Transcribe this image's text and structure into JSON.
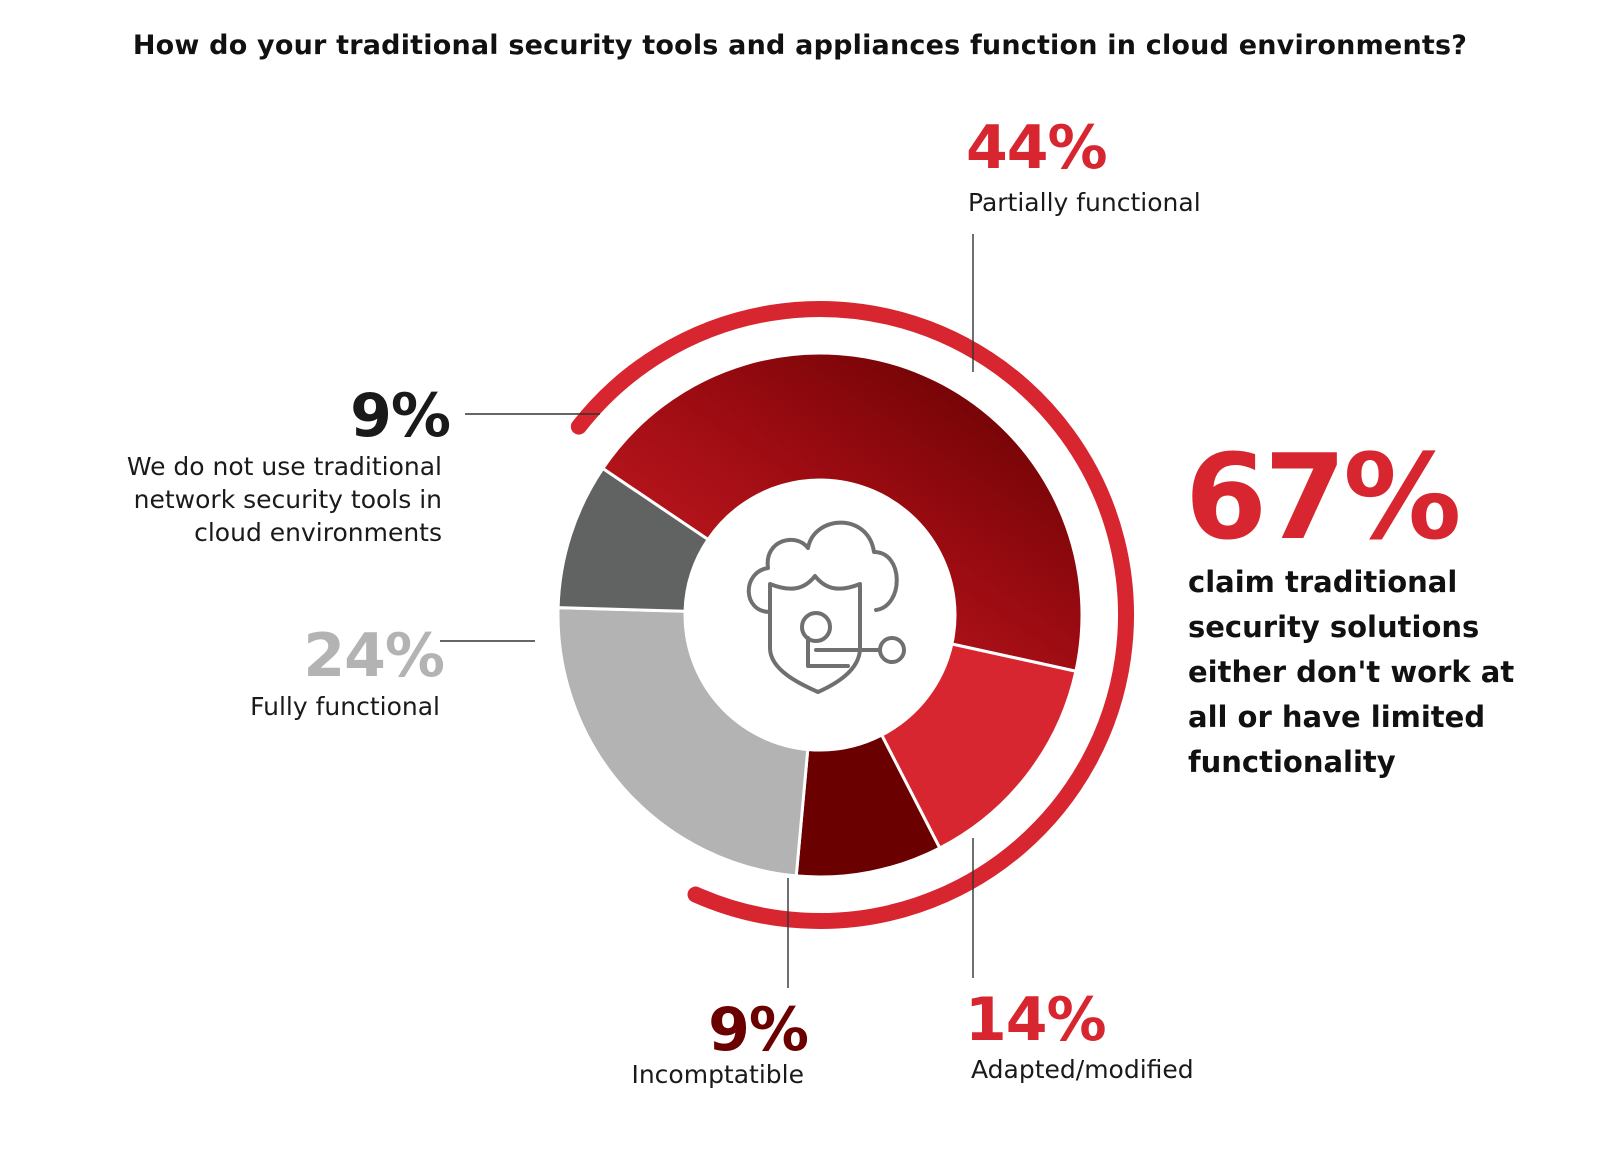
{
  "title": "How do your traditional security tools and appliances function in cloud environments?",
  "colors": {
    "accent_red": "#d7262f",
    "dark_red": "#6b0000",
    "gray_dark": "#616362",
    "gray_light": "#b3b3b3",
    "text_dark": "#1a1a1a"
  },
  "center_icon": "cloud-shield-key-icon",
  "chart_data": {
    "type": "pie",
    "variant": "donut",
    "slices": [
      {
        "label": "Partially functional",
        "value": 44,
        "value_label": "44%",
        "color": "#a30d13"
      },
      {
        "label": "Adapted/modified",
        "value": 14,
        "value_label": "14%",
        "color": "#d7262f"
      },
      {
        "label": "Incomptatible",
        "value": 9,
        "value_label": "9%",
        "color": "#6b0000"
      },
      {
        "label": "Fully functional",
        "value": 24,
        "value_label": "24%",
        "color": "#b3b3b3"
      },
      {
        "label": "We do not use traditional network security tools in cloud environments",
        "value": 9,
        "value_label": "9%",
        "color": "#616362"
      }
    ],
    "highlight": {
      "value_label": "67%",
      "text": "claim traditional security solutions either don't work at all or have limited functionality"
    }
  }
}
